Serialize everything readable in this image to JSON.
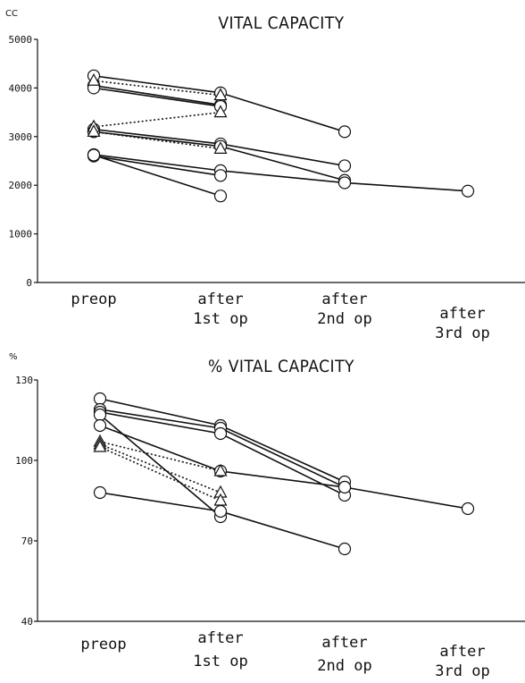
{
  "chart_data": [
    {
      "type": "line",
      "title": "VITAL CAPACITY",
      "ylabel": "CC",
      "ylim": [
        0,
        5000
      ],
      "yticks": [
        "5000",
        "4000",
        "3000",
        "2000",
        "1000",
        "0"
      ],
      "categories": [
        {
          "line1": "preop",
          "line2": ""
        },
        {
          "line1": "after",
          "line2": "1st op"
        },
        {
          "line1": "after",
          "line2": "2nd op"
        },
        {
          "line1": "after",
          "line2": "3rd op"
        }
      ],
      "series": [
        {
          "marker": "circle",
          "style": "solid",
          "values": [
            4250,
            3900,
            3100,
            null
          ]
        },
        {
          "marker": "circle",
          "style": "solid",
          "values": [
            4050,
            3650,
            null,
            null
          ]
        },
        {
          "marker": "circle",
          "style": "solid",
          "values": [
            4000,
            3620,
            null,
            null
          ]
        },
        {
          "marker": "circle",
          "style": "solid",
          "values": [
            3150,
            2850,
            2400,
            null
          ]
        },
        {
          "marker": "circle",
          "style": "solid",
          "values": [
            3100,
            2800,
            2100,
            null
          ]
        },
        {
          "marker": "circle",
          "style": "solid",
          "values": [
            2630,
            2300,
            2050,
            1880
          ]
        },
        {
          "marker": "circle",
          "style": "solid",
          "values": [
            2600,
            2200,
            null,
            null
          ]
        },
        {
          "marker": "circle",
          "style": "solid",
          "values": [
            2620,
            1780,
            null,
            null
          ]
        },
        {
          "marker": "triangle",
          "style": "dotted",
          "values": [
            4150,
            3850,
            null,
            null
          ]
        },
        {
          "marker": "triangle",
          "style": "dotted",
          "values": [
            3200,
            3500,
            null,
            null
          ]
        },
        {
          "marker": "triangle",
          "style": "dotted",
          "values": [
            3100,
            2750,
            null,
            null
          ]
        }
      ]
    },
    {
      "type": "line",
      "title": "% VITAL CAPACITY",
      "ylabel": "%",
      "ylim": [
        40,
        130
      ],
      "yticks": [
        "130",
        "100",
        "70",
        "40"
      ],
      "categories": [
        {
          "line1": "preop",
          "line2": ""
        },
        {
          "line1": "after",
          "line2": "1st op"
        },
        {
          "line1": "after",
          "line2": "2nd op"
        },
        {
          "line1": "after",
          "line2": "3rd op"
        }
      ],
      "series": [
        {
          "marker": "circle",
          "style": "solid",
          "values": [
            123,
            113,
            92,
            null
          ]
        },
        {
          "marker": "circle",
          "style": "solid",
          "values": [
            119,
            112,
            90,
            null
          ]
        },
        {
          "marker": "circle",
          "style": "solid",
          "values": [
            118,
            110,
            87,
            null
          ]
        },
        {
          "marker": "circle",
          "style": "solid",
          "values": [
            117,
            79,
            null,
            null
          ]
        },
        {
          "marker": "circle",
          "style": "solid",
          "values": [
            113,
            96,
            90,
            82
          ]
        },
        {
          "marker": "circle",
          "style": "solid",
          "values": [
            88,
            81,
            67,
            null
          ]
        },
        {
          "marker": "triangle",
          "style": "dotted",
          "values": [
            107,
            96,
            null,
            null
          ]
        },
        {
          "marker": "triangle",
          "style": "dotted",
          "values": [
            106,
            88,
            null,
            null
          ]
        },
        {
          "marker": "triangle",
          "style": "dotted",
          "values": [
            105,
            85,
            null,
            null
          ]
        }
      ]
    }
  ]
}
